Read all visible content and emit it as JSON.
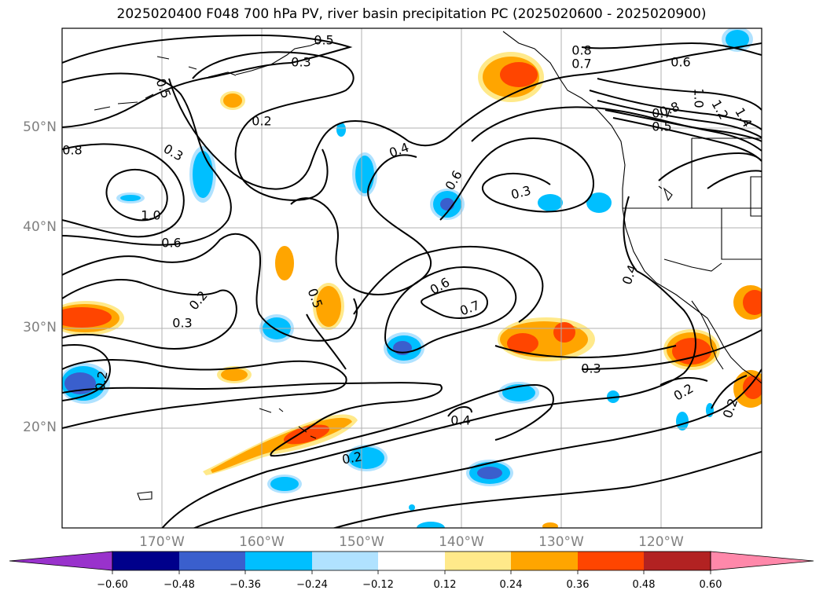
{
  "title": "2025020400 F048 700 hPa PV, river basin precipitation PC (2025020600 - 2025020900)",
  "map": {
    "lat_labels": [
      "50°N",
      "40°N",
      "30°N",
      "20°N"
    ],
    "lon_labels": [
      "170°W",
      "160°W",
      "150°W",
      "140°W",
      "130°W",
      "120°W"
    ],
    "contour_labels": [
      "0.5",
      "0.3",
      "0.5",
      "0.2",
      "0.8",
      "0.7",
      "0.6",
      "0.4",
      "0.6",
      "0.3",
      "0.8",
      "0.7",
      "0.5",
      "1.0",
      "0.6",
      "0.8",
      "1.0",
      "1.2",
      "1.4",
      "0.2",
      "0.4",
      "0.6",
      "0.7",
      "0.5",
      "0.2",
      "0.3",
      "0.3",
      "0.2",
      "0.4",
      "0.2",
      "0.2",
      "0.3"
    ],
    "colors": {
      "grid": "#b0b0b0",
      "contour": "#000000",
      "axis_label": "#808080"
    }
  },
  "colorbar": {
    "ticks": [
      "−0.60",
      "−0.48",
      "−0.36",
      "−0.24",
      "−0.12",
      "0.12",
      "0.24",
      "0.36",
      "0.48",
      "0.60"
    ],
    "colors": [
      "#9932cc",
      "#00008b",
      "#3a5fcd",
      "#00bfff",
      "#b0e2ff",
      "#ffffff",
      "#ffe98a",
      "#ffa500",
      "#ff4500",
      "#b22222",
      "#ff88aa"
    ]
  }
}
